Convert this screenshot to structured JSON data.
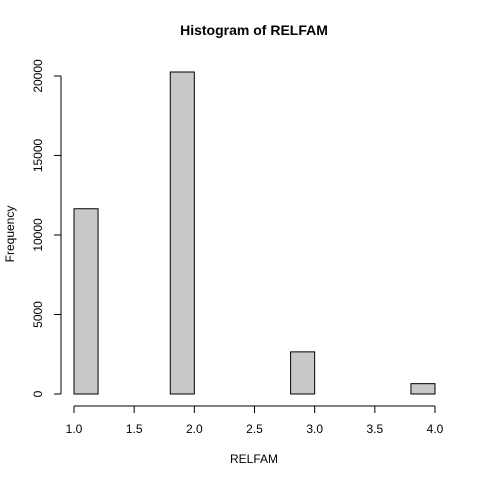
{
  "chart_data": {
    "type": "bar",
    "title": "Histogram of RELFAM",
    "xlabel": "RELFAM",
    "ylabel": "Frequency",
    "bin_edges": [
      1.0,
      1.2,
      1.4,
      1.6,
      1.8,
      2.0,
      2.2,
      2.4,
      2.6,
      2.8,
      3.0,
      3.2,
      3.4,
      3.6,
      3.8,
      4.0
    ],
    "values": [
      11650,
      0,
      0,
      0,
      20250,
      0,
      0,
      0,
      0,
      2650,
      0,
      0,
      0,
      0,
      650
    ],
    "xlim": [
      1.0,
      4.0
    ],
    "ylim": [
      0,
      20250
    ],
    "xticks": [
      1.0,
      1.5,
      2.0,
      2.5,
      3.0,
      3.5,
      4.0
    ],
    "xtick_labels": [
      "1.0",
      "1.5",
      "2.0",
      "2.5",
      "3.0",
      "3.5",
      "4.0"
    ],
    "yticks": [
      0,
      5000,
      10000,
      15000,
      20000
    ],
    "ytick_labels": [
      "0",
      "5000",
      "10000",
      "15000",
      "20000"
    ],
    "grid": false,
    "bar_color": "#c8c8c8",
    "edge_color": "#000000"
  }
}
